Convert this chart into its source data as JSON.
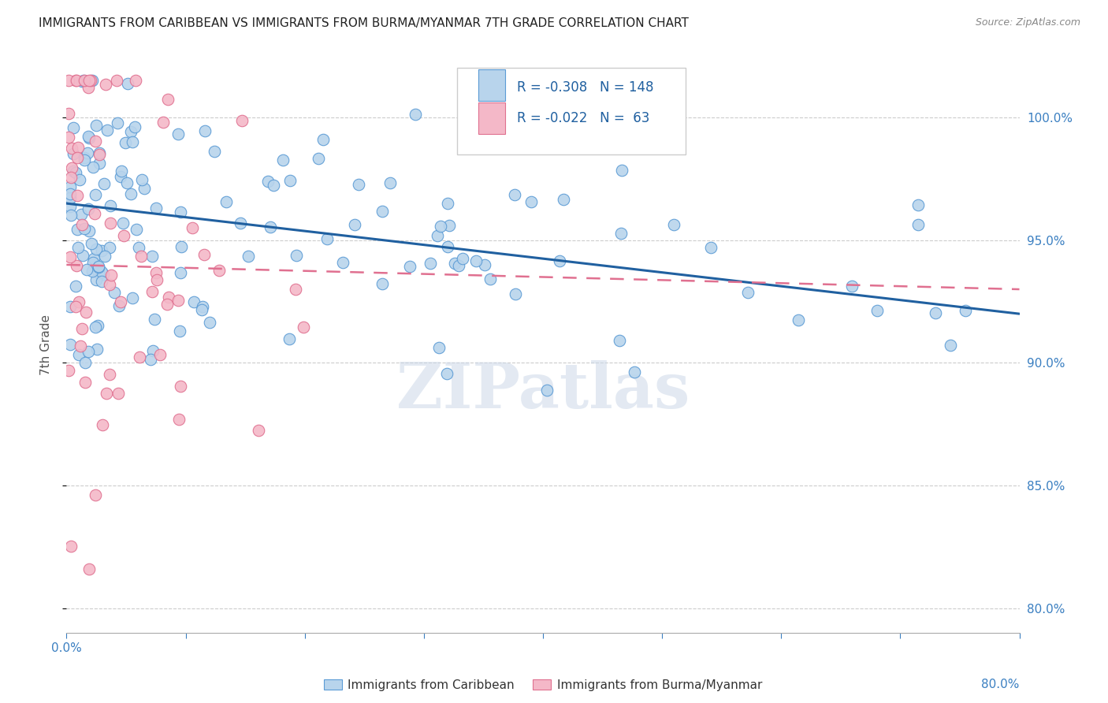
{
  "title": "IMMIGRANTS FROM CARIBBEAN VS IMMIGRANTS FROM BURMA/MYANMAR 7TH GRADE CORRELATION CHART",
  "source": "Source: ZipAtlas.com",
  "ylabel": "7th Grade",
  "yticks": [
    80.0,
    85.0,
    90.0,
    95.0,
    100.0
  ],
  "xmin": 0.0,
  "xmax": 80.0,
  "ymin": 79.0,
  "ymax": 102.5,
  "legend_r_blue": "-0.308",
  "legend_n_blue": "148",
  "legend_r_pink": "-0.022",
  "legend_n_pink": " 63",
  "legend_label_blue": "Immigrants from Caribbean",
  "legend_label_pink": "Immigrants from Burma/Myanmar",
  "watermark": "ZIPatlas",
  "blue_fill": "#b8d4ec",
  "blue_edge": "#5b9bd5",
  "pink_fill": "#f4b8c8",
  "pink_edge": "#e07090",
  "blue_line_color": "#2060a0",
  "pink_line_color": "#e07090",
  "title_color": "#222222",
  "source_color": "#888888",
  "axis_label_color": "#3a7fc1",
  "ylabel_color": "#555555",
  "grid_color": "#cccccc",
  "tick_color": "#3a7fc1"
}
